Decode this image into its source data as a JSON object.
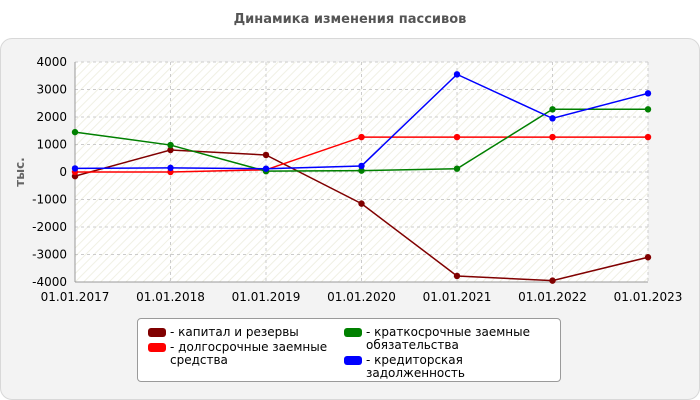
{
  "colors": {
    "capital": "#800000",
    "longterm": "#ff0000",
    "shortterm": "#008000",
    "payable": "#0000ff"
  },
  "chart_data": {
    "type": "line",
    "title": "Динамика изменения пассивов",
    "xlabel": "",
    "ylabel": "тыс.",
    "ylim": [
      -4000,
      4000
    ],
    "yticks": [
      4000,
      3000,
      2000,
      1000,
      0,
      -1000,
      -2000,
      -3000,
      -4000
    ],
    "categories": [
      "01.01.2017",
      "01.01.2018",
      "01.01.2019",
      "01.01.2020",
      "01.01.2021",
      "01.01.2022",
      "01.01.2023"
    ],
    "grid": true,
    "legend_position": "bottom",
    "series": [
      {
        "name": "капитал и резервы",
        "color": "#800000",
        "values": [
          -150,
          800,
          620,
          -1150,
          -3780,
          -3950,
          -3100
        ]
      },
      {
        "name": "долгосрочные заемные средства",
        "color": "#ff0000",
        "values": [
          0,
          0,
          80,
          1270,
          1270,
          1270,
          1270
        ]
      },
      {
        "name": "краткосрочные заемные обязательства",
        "color": "#008000",
        "values": [
          1450,
          980,
          30,
          50,
          120,
          2280,
          2280
        ]
      },
      {
        "name": "кредиторская задолженность",
        "color": "#0000ff",
        "values": [
          130,
          150,
          120,
          220,
          3550,
          1950,
          2860
        ]
      }
    ]
  },
  "legend": {
    "items": [
      {
        "label": "- капитал и резервы",
        "color": "#800000"
      },
      {
        "label": "- долгосрочные заемные\nсредства",
        "color": "#ff0000"
      },
      {
        "label": "- краткосрочные заемные\nобязательства",
        "color": "#008000"
      },
      {
        "label": "- кредиторская задолженность",
        "color": "#0000ff"
      }
    ]
  }
}
